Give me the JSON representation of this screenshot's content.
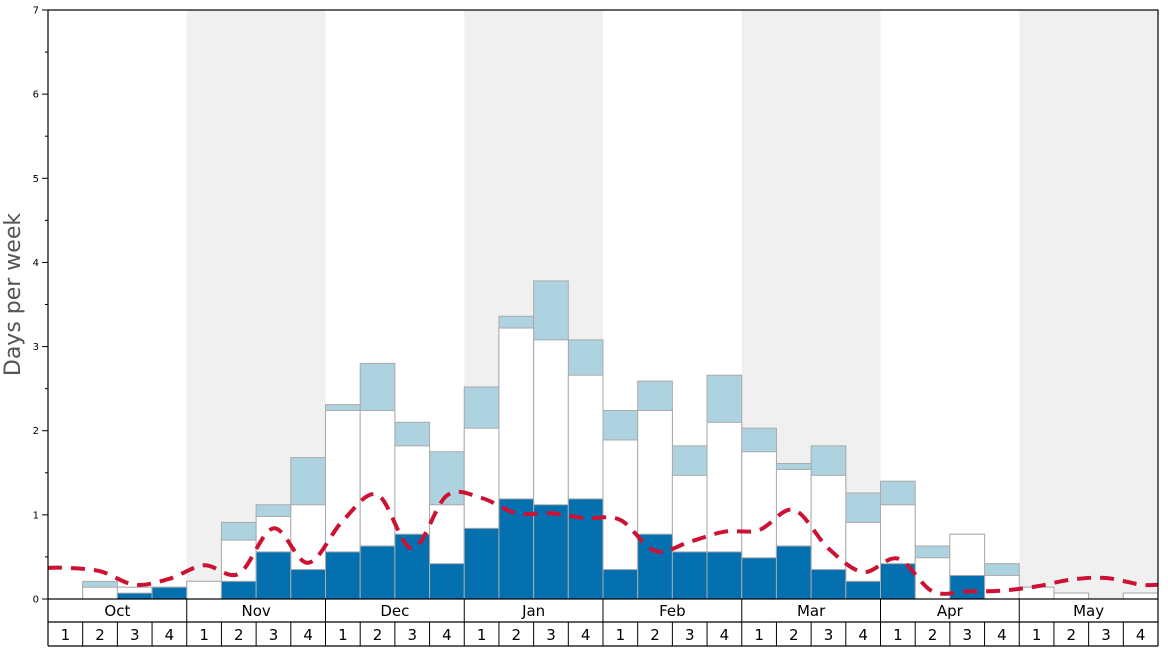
{
  "chart_data": {
    "type": "bar",
    "ylabel": "Days per week",
    "ylim": [
      0,
      7
    ],
    "yticks": [
      "0",
      "1",
      "2",
      "3",
      "4",
      "5",
      "6",
      "7"
    ],
    "months": [
      "Oct",
      "Nov",
      "Dec",
      "Jan",
      "Feb",
      "Mar",
      "Apr",
      "May"
    ],
    "week_labels": [
      "1",
      "2",
      "3",
      "4"
    ],
    "month_shading": [
      "white",
      "gray",
      "white",
      "gray",
      "white",
      "gray",
      "white",
      "gray"
    ],
    "series": [
      {
        "key": "dark",
        "values": [
          0,
          0,
          0.07,
          0.14,
          0,
          0.21,
          0.56,
          0.35,
          0.56,
          0.63,
          0.77,
          0.42,
          0.84,
          1.19,
          1.12,
          1.19,
          0.35,
          0.77,
          0.56,
          0.56,
          0.49,
          0.63,
          0.35,
          0.21,
          0.42,
          0,
          0.28,
          0,
          0,
          0,
          0,
          0
        ]
      },
      {
        "key": "white",
        "values": [
          0,
          0.14,
          0.14,
          0.14,
          0.21,
          0.7,
          0.98,
          1.12,
          2.24,
          2.24,
          1.82,
          1.12,
          2.03,
          3.22,
          3.08,
          2.66,
          1.89,
          2.24,
          1.47,
          2.1,
          1.75,
          1.54,
          1.47,
          0.91,
          1.12,
          0.49,
          0.77,
          0.28,
          0.14,
          0.07,
          0,
          0.07
        ]
      },
      {
        "key": "light",
        "values": [
          0,
          0.21,
          0.14,
          0.14,
          0.21,
          0.91,
          1.12,
          1.68,
          2.31,
          2.8,
          2.1,
          1.75,
          2.52,
          3.36,
          3.78,
          3.08,
          2.24,
          2.59,
          1.82,
          2.66,
          2.03,
          1.61,
          1.82,
          1.26,
          1.4,
          0.63,
          0.77,
          0.42,
          0.14,
          0.07,
          0,
          0.07
        ]
      },
      {
        "key": "average",
        "values": [
          0.37,
          0.33,
          0.17,
          0.24,
          0.4,
          0.3,
          0.84,
          0.43,
          0.93,
          1.24,
          0.6,
          1.23,
          1.2,
          1.02,
          1.02,
          0.96,
          0.94,
          0.57,
          0.68,
          0.8,
          0.82,
          1.06,
          0.6,
          0.32,
          0.48,
          0.09,
          0.09,
          0.1,
          0.15,
          0.23,
          0.25,
          0.17
        ]
      }
    ],
    "colors": {
      "dark": "#0570b0",
      "light": "#aed3e0",
      "white_bar": "#ffffff",
      "bar_stroke": "#aaaaaa",
      "average_line": "#cc1133",
      "shade": "#f0f0f0"
    }
  }
}
